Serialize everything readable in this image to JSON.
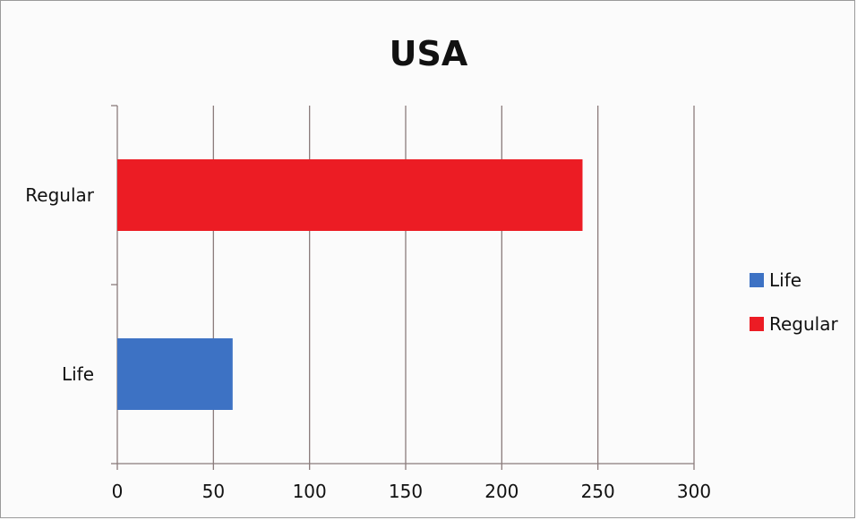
{
  "chart_data": {
    "type": "bar",
    "orientation": "horizontal",
    "title": "USA",
    "categories": [
      "Life",
      "Regular"
    ],
    "values": [
      60,
      242
    ],
    "colors": [
      "#3d72c4",
      "#ec1c24"
    ],
    "xlim": [
      0,
      300
    ],
    "xticks": [
      "0",
      "50",
      "100",
      "150",
      "200",
      "250",
      "300"
    ],
    "grid": "vertical",
    "legend": {
      "position": "right",
      "entries": [
        {
          "label": "Life",
          "color": "#3d72c4"
        },
        {
          "label": "Regular",
          "color": "#ec1c24"
        }
      ]
    }
  }
}
